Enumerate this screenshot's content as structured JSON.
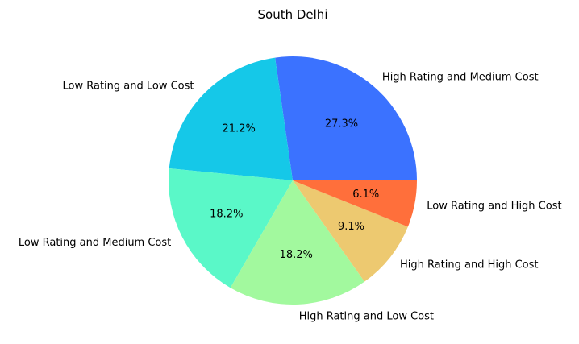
{
  "chart_data": {
    "type": "pie",
    "title": "South Delhi",
    "slices": [
      {
        "label": "High Rating and Medium Cost",
        "value": 27.3,
        "pct_label": "27.3%",
        "color": "#3b72ff"
      },
      {
        "label": "Low Rating and Low Cost",
        "value": 21.2,
        "pct_label": "21.2%",
        "color": "#15c8e8"
      },
      {
        "label": "Low Rating and Medium Cost",
        "value": 18.2,
        "pct_label": "18.2%",
        "color": "#5af8c8"
      },
      {
        "label": "High Rating and Low Cost",
        "value": 18.2,
        "pct_label": "18.2%",
        "color": "#a2f99e"
      },
      {
        "label": "High Rating and High Cost",
        "value": 9.1,
        "pct_label": "9.1%",
        "color": "#edc970"
      },
      {
        "label": "Low Rating and High Cost",
        "value": 6.1,
        "pct_label": "6.1%",
        "color": "#ff6f3b"
      }
    ]
  }
}
